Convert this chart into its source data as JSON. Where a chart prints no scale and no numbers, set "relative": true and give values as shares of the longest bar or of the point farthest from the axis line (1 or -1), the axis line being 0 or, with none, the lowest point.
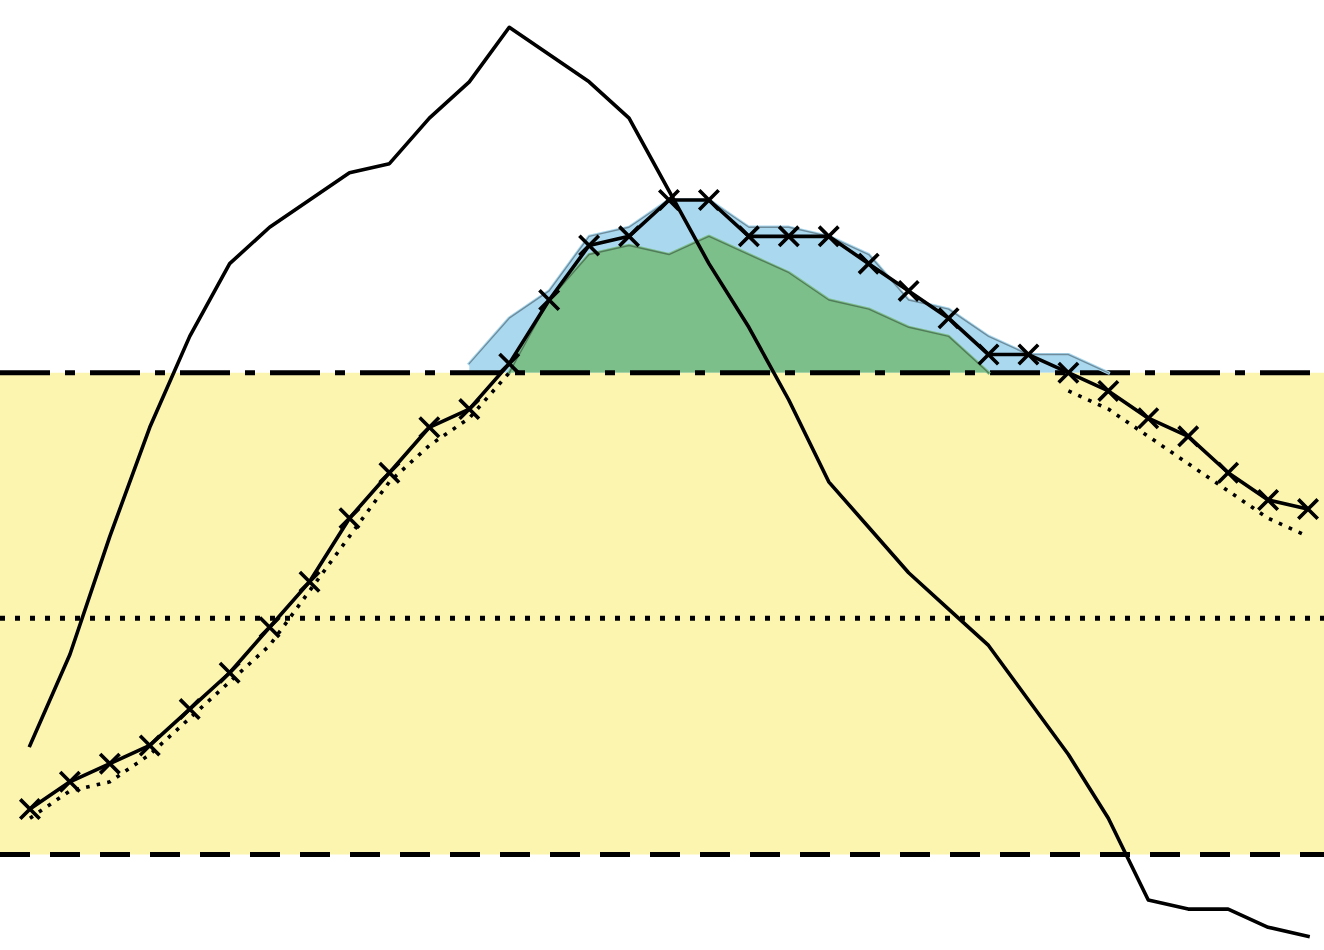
{
  "chart_data": {
    "type": "line",
    "relative": true,
    "legend": false,
    "categories": [
      null,
      null,
      null,
      null,
      null,
      null,
      null,
      null,
      null,
      null,
      null,
      null,
      null,
      null,
      null,
      null,
      null,
      null,
      null,
      null,
      null,
      null,
      null,
      null,
      null,
      null,
      null,
      null,
      null,
      null,
      null,
      null,
      null
    ],
    "bands": [
      {
        "axis": "y",
        "from": 0.09,
        "to": 0.62,
        "color": "#fbf5b0"
      }
    ],
    "ref_lines": [
      {
        "axis": "y",
        "value": 0.62,
        "line_style": "dashdot",
        "color": "#000000"
      },
      {
        "axis": "y",
        "value": 0.35,
        "line_style": "dotted",
        "color": "#000000"
      },
      {
        "axis": "y",
        "value": 0.09,
        "line_style": "dashed",
        "color": "#000000"
      }
    ],
    "series": [
      {
        "type": "area",
        "color": "#a9d8ef",
        "values": [
          null,
          null,
          null,
          null,
          null,
          null,
          null,
          null,
          null,
          null,
          null,
          0.63,
          0.68,
          0.71,
          0.77,
          0.78,
          0.81,
          0.81,
          0.78,
          0.78,
          0.77,
          0.75,
          0.7,
          0.69,
          0.66,
          0.64,
          0.64,
          0.62,
          null,
          null,
          null,
          null,
          null
        ]
      },
      {
        "type": "area",
        "color": "#7dbf8a",
        "values": [
          null,
          null,
          null,
          null,
          null,
          null,
          null,
          null,
          null,
          null,
          null,
          null,
          0.62,
          0.7,
          0.75,
          0.76,
          0.75,
          0.77,
          0.75,
          0.73,
          0.7,
          0.69,
          0.67,
          0.66,
          0.62,
          null,
          null,
          null,
          null,
          null,
          null,
          null,
          null
        ]
      },
      {
        "color": "#000000",
        "line_style": "dotted",
        "marker": "none",
        "values": [
          0.13,
          0.16,
          0.17,
          0.2,
          0.24,
          0.28,
          0.32,
          0.38,
          0.44,
          0.5,
          0.54,
          0.57,
          0.62,
          null,
          null,
          null,
          null,
          null,
          null,
          null,
          null,
          null,
          null,
          null,
          null,
          null,
          0.6,
          0.58,
          0.55,
          0.52,
          0.49,
          0.46,
          0.44
        ]
      },
      {
        "color": "#000000",
        "line_style": "solid",
        "marker": "cross",
        "values": [
          0.14,
          0.17,
          0.19,
          0.21,
          0.25,
          0.29,
          0.34,
          0.39,
          0.46,
          0.51,
          0.56,
          0.58,
          0.63,
          0.7,
          0.76,
          0.77,
          0.81,
          0.81,
          0.77,
          0.77,
          0.77,
          0.74,
          0.71,
          0.68,
          0.64,
          0.64,
          0.62,
          0.6,
          0.57,
          0.55,
          0.51,
          0.48,
          0.47
        ]
      },
      {
        "color": "#000000",
        "line_style": "solid",
        "marker": "none",
        "values": [
          0.21,
          0.31,
          0.44,
          0.56,
          0.66,
          0.74,
          0.78,
          0.81,
          0.84,
          0.85,
          0.9,
          0.94,
          1.0,
          0.97,
          0.94,
          0.9,
          0.82,
          0.74,
          0.67,
          0.59,
          0.5,
          0.45,
          0.4,
          0.36,
          0.32,
          0.26,
          0.2,
          0.13,
          0.04,
          0.03,
          0.03,
          0.01,
          0
        ]
      }
    ]
  }
}
